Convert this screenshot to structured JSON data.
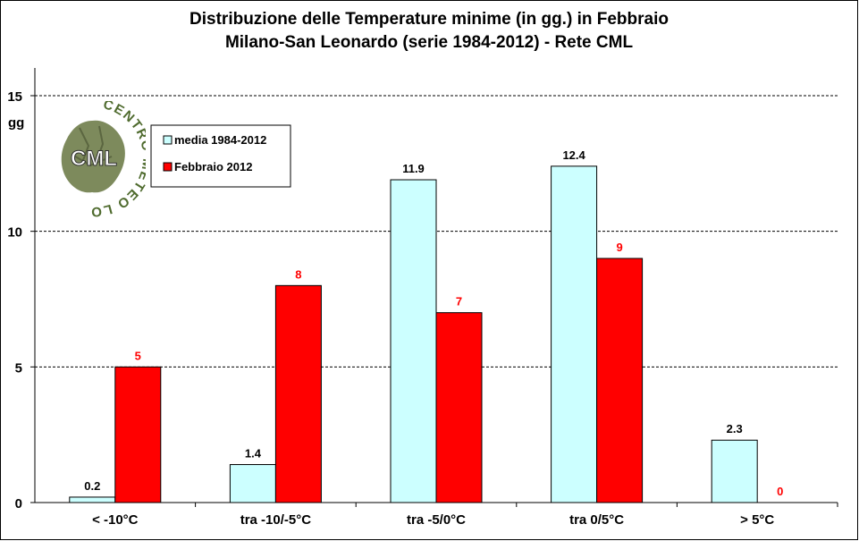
{
  "title_line1": "Distribuzione  delle  Temperature  minime  (in  gg.)  in  Febbraio",
  "title_line2": "Milano-San  Leonardo  (serie  1984-2012)  - Rete  CML",
  "logo": {
    "ring_text": "CENTRO METEO LOMBARDO",
    "abbr": "CML"
  },
  "colors": {
    "media": "#ccffff",
    "febbraio": "#ff0000",
    "febbraio_label": "#ff0000",
    "grid": "#000000"
  },
  "chart_data": {
    "type": "bar",
    "categories": [
      "< -10°C",
      "tra -10/-5°C",
      "tra -5/0°C",
      "tra 0/5°C",
      "> 5°C"
    ],
    "series": [
      {
        "name": "media 1984-2012",
        "values": [
          0.2,
          1.4,
          11.9,
          12.4,
          2.3
        ],
        "labels": [
          "0.2",
          "1.4",
          "11.9",
          "12.4",
          "2.3"
        ]
      },
      {
        "name": "Febbraio 2012",
        "values": [
          5,
          8,
          7,
          9,
          0
        ],
        "labels": [
          "5",
          "8",
          "7",
          "9",
          "0"
        ]
      }
    ],
    "ylabel": "gg",
    "ylim": [
      0,
      16
    ],
    "yticks": [
      0,
      5,
      10,
      15
    ],
    "grid": "dashed",
    "legend": "top-left"
  }
}
